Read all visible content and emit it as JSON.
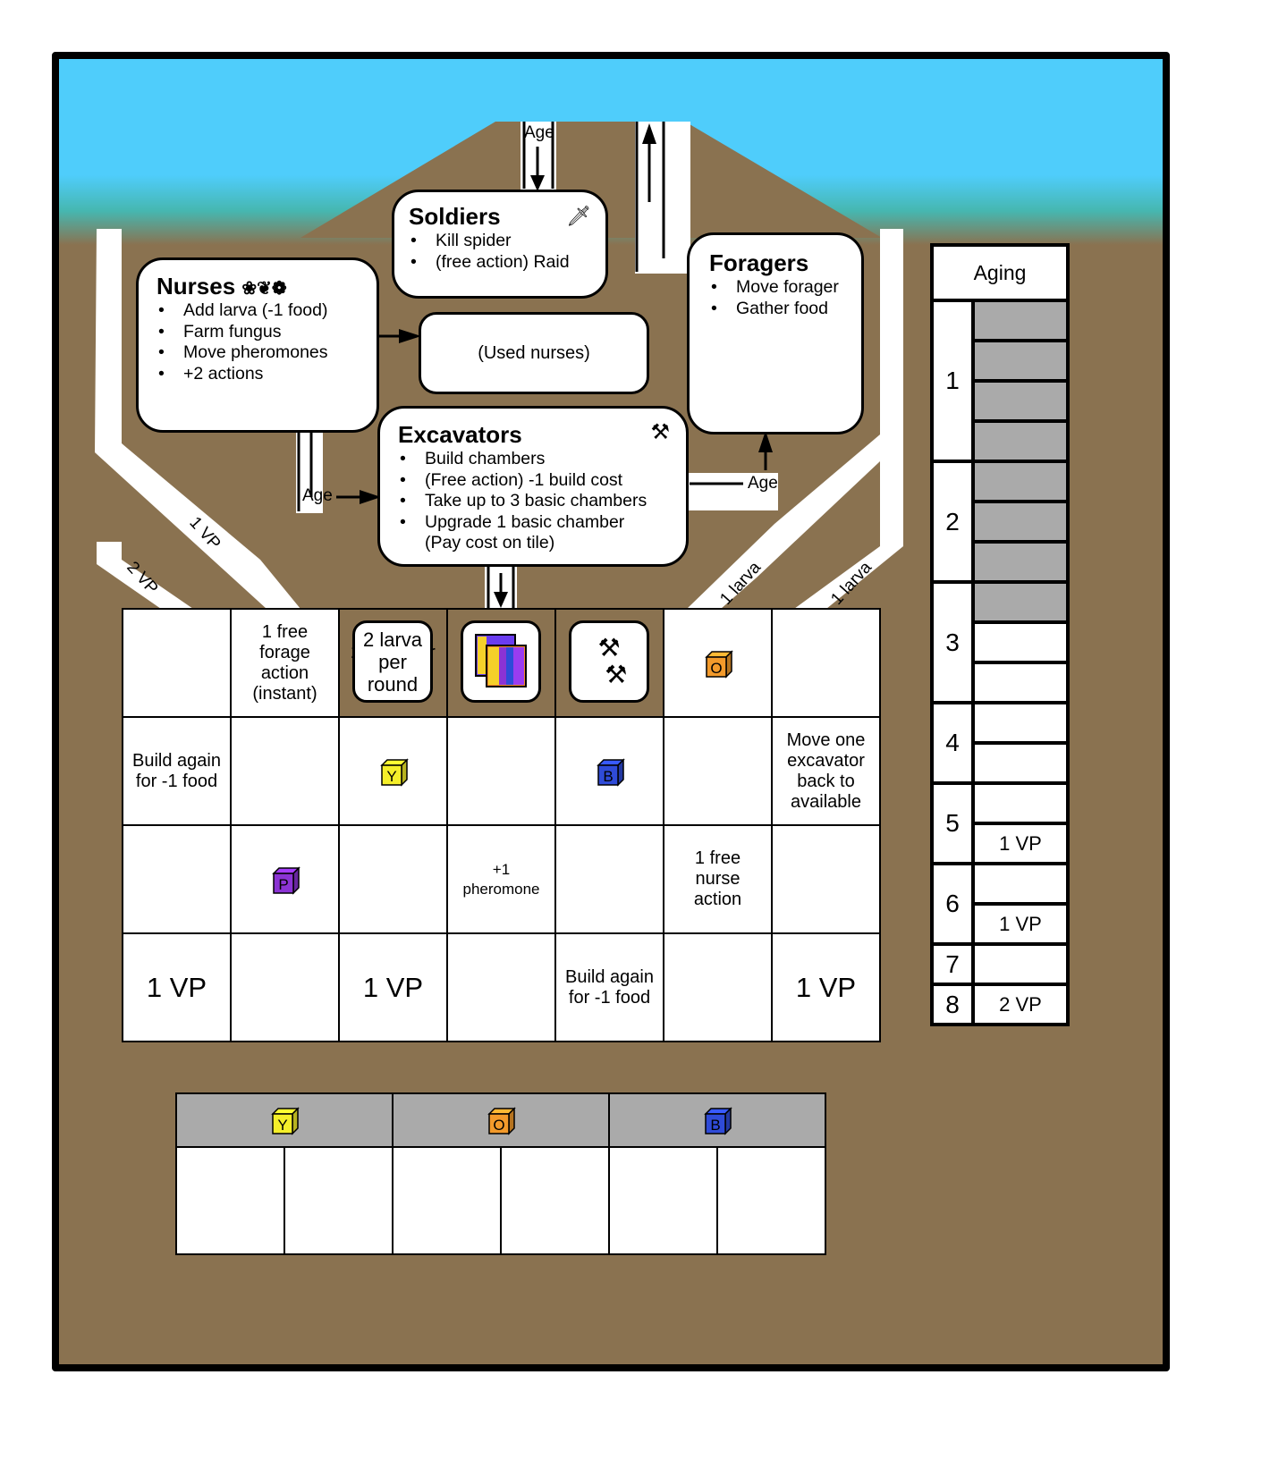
{
  "roles": {
    "soldiers": {
      "title": "Soldiers",
      "items": [
        "Kill spider",
        "(free action) Raid"
      ]
    },
    "nurses": {
      "title": "Nurses",
      "items": [
        "Add larva (-1 food)",
        "Farm fungus",
        "Move pheromones",
        "+2 actions"
      ]
    },
    "foragers": {
      "title": "Foragers",
      "items": [
        "Move forager",
        "Gather food"
      ]
    },
    "excavators": {
      "title": "Excavators",
      "items": [
        "Build chambers",
        "(Free action) -1 build cost",
        "Take up to 3 basic chambers",
        "Upgrade 1  basic chamber",
        "(Pay cost on tile)"
      ]
    },
    "used_nurses": "(Used nurses)"
  },
  "flow_labels": {
    "age_top": "Age",
    "age_left": "Age",
    "age_right": "Age",
    "vp1": "1 VP",
    "vp2": "2 VP",
    "larva_left": "1 larva",
    "larva_right": "1 larva"
  },
  "chamber_grid": {
    "row1": [
      "",
      "1 free forage action (instant)",
      "2 larva per round",
      "",
      "",
      "",
      ""
    ],
    "row2": [
      "Build again for -1 food",
      "",
      "",
      "",
      "",
      "",
      "Move one excavator back to available"
    ],
    "row3": [
      "",
      "",
      "",
      "+1 pheromone",
      "",
      "1 free nurse action",
      ""
    ],
    "row4": [
      "1 VP",
      "",
      "1 VP",
      "",
      "Build again for -1 food",
      "",
      "1 VP"
    ]
  },
  "cubes": {
    "orange": {
      "letter": "O",
      "color": "#f39a2b"
    },
    "yellow": {
      "letter": "Y",
      "color": "#f5ef2a"
    },
    "blue": {
      "letter": "B",
      "color": "#2f4bd8"
    },
    "purple": {
      "letter": "P",
      "color": "#8b33d4"
    }
  },
  "storage": {
    "headers": [
      "Y",
      "O",
      "B"
    ]
  },
  "aging": {
    "title": "Aging",
    "rows": [
      {
        "num": "1",
        "vp": ""
      },
      {
        "num": "2",
        "vp": ""
      },
      {
        "num": "3",
        "vp": ""
      },
      {
        "num": "4",
        "vp": ""
      },
      {
        "num": "5",
        "vp": "1 VP"
      },
      {
        "num": "6",
        "vp": "1 VP"
      },
      {
        "num": "7",
        "vp": ""
      },
      {
        "num": "8",
        "vp": "2 VP"
      }
    ]
  },
  "colors": {
    "sky": "#4fcdfb",
    "dirt": "#8a7250",
    "gray": "#aaaaaa"
  }
}
